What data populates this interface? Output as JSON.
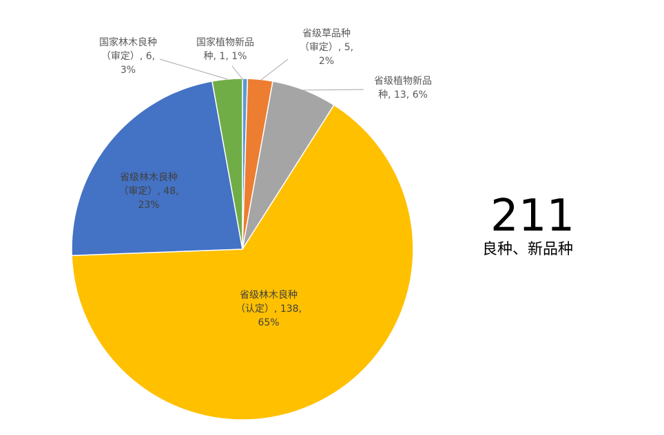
{
  "chart_data": {
    "type": "pie",
    "slices": [
      {
        "label_lines": [
          "国家植物新品",
          "种, 1, 1%"
        ],
        "value": 1,
        "percent": "1%",
        "color": "#5b9bd5"
      },
      {
        "label_lines": [
          "省级草品种",
          "（审定）, 5,",
          "2%"
        ],
        "value": 5,
        "percent": "2%",
        "color": "#ed7d31"
      },
      {
        "label_lines": [
          "省级植物新品",
          "种, 13, 6%"
        ],
        "value": 13,
        "percent": "6%",
        "color": "#a5a5a5"
      },
      {
        "label_lines": [
          "省级林木良种",
          "（认定）, 138,",
          "65%"
        ],
        "value": 138,
        "percent": "65%",
        "color": "#ffc000"
      },
      {
        "label_lines": [
          "省级林木良种",
          "（审定）, 48,",
          "23%"
        ],
        "value": 48,
        "percent": "23%",
        "color": "#4472c4"
      },
      {
        "label_lines": [
          "国家林木良种",
          "（审定）, 6,",
          "3%"
        ],
        "value": 6,
        "percent": "3%",
        "color": "#70ad47"
      }
    ]
  },
  "total": {
    "number": "211",
    "caption": "良种、新品种"
  }
}
